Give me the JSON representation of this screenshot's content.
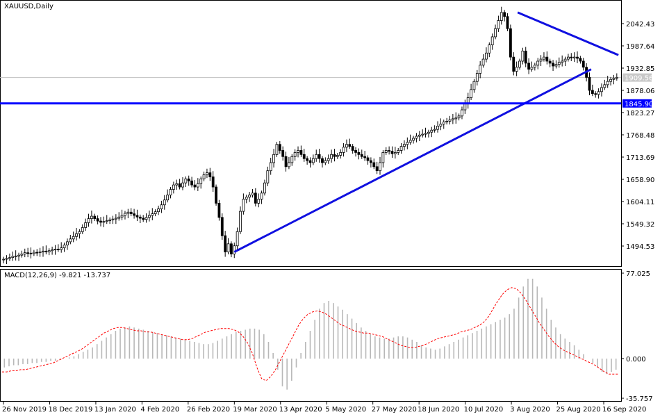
{
  "chart_data": [
    {
      "type": "candlestick",
      "title": "XAUUSD,Daily",
      "symbol": "XAUUSD",
      "timeframe": "Daily",
      "ylim": [
        1460,
        2090
      ],
      "y_ticks": [
        "2042.43",
        "1987.64",
        "1932.85",
        "1878.06",
        "1823.27",
        "1768.48",
        "1713.69",
        "1658.90",
        "1604.11",
        "1549.32",
        "1494.53"
      ],
      "current_price": "1909.56",
      "horizontal_line_value": "1845.90",
      "x_ticks": [
        "26 Nov 2019",
        "18 Dec 2019",
        "13 Jan 2020",
        "4 Feb 2020",
        "26 Feb 2020",
        "19 Mar 2020",
        "13 Apr 2020",
        "5 May 2020",
        "27 May 2020",
        "18 Jun 2020",
        "10 Jul 2020",
        "3 Aug 2020",
        "25 Aug 2020",
        "16 Sep 2020"
      ],
      "close_series": [
        1462,
        1464,
        1466,
        1469,
        1470,
        1472,
        1475,
        1478,
        1477,
        1476,
        1479,
        1478,
        1480,
        1482,
        1480,
        1483,
        1485,
        1487,
        1486,
        1490,
        1497,
        1505,
        1512,
        1518,
        1525,
        1530,
        1540,
        1552,
        1562,
        1568,
        1562,
        1556,
        1553,
        1555,
        1557,
        1559,
        1561,
        1563,
        1566,
        1570,
        1575,
        1578,
        1574,
        1570,
        1566,
        1563,
        1560,
        1565,
        1570,
        1574,
        1579,
        1586,
        1596,
        1608,
        1620,
        1634,
        1645,
        1648,
        1640,
        1650,
        1660,
        1655,
        1645,
        1640,
        1648,
        1660,
        1670,
        1675,
        1665,
        1640,
        1600,
        1565,
        1520,
        1480,
        1500,
        1475,
        1495,
        1530,
        1580,
        1610,
        1615,
        1620,
        1625,
        1600,
        1610,
        1625,
        1650,
        1680,
        1700,
        1720,
        1745,
        1730,
        1715,
        1690,
        1700,
        1715,
        1725,
        1730,
        1720,
        1710,
        1705,
        1700,
        1710,
        1720,
        1710,
        1700,
        1705,
        1710,
        1720,
        1715,
        1718,
        1725,
        1738,
        1745,
        1740,
        1730,
        1725,
        1720,
        1715,
        1712,
        1705,
        1700,
        1690,
        1680,
        1700,
        1725,
        1730,
        1728,
        1722,
        1725,
        1730,
        1740,
        1745,
        1750,
        1755,
        1760,
        1765,
        1768,
        1770,
        1772,
        1775,
        1780,
        1782,
        1790,
        1795,
        1800,
        1802,
        1805,
        1808,
        1810,
        1815,
        1830,
        1845,
        1860,
        1880,
        1900,
        1920,
        1940,
        1955,
        1970,
        1990,
        2010,
        2030,
        2050,
        2070,
        2060,
        2030,
        1960,
        1925,
        1935,
        1950,
        1975,
        1945,
        1930,
        1935,
        1940,
        1950,
        1955,
        1960,
        1950,
        1945,
        1938,
        1942,
        1947,
        1950,
        1955,
        1960,
        1958,
        1960,
        1957,
        1950,
        1935,
        1910,
        1878,
        1870,
        1868,
        1875,
        1885,
        1892,
        1900,
        1905,
        1908,
        1910
      ],
      "trendlines": [
        {
          "from": [
            "19 Mar 2020",
            1480
          ],
          "to": [
            "10 Sep 2020",
            1930
          ]
        },
        {
          "from": [
            "6 Aug 2020",
            2070
          ],
          "to": [
            "23 Sep 2020",
            1965
          ]
        }
      ]
    },
    {
      "type": "bar+line",
      "title": "MACD(12,26,9) -9.821 -13.737",
      "indicator": "MACD",
      "params": [
        12,
        26,
        9
      ],
      "macd_value": -9.821,
      "signal_value": -13.737,
      "ylim": [
        -35.757,
        77.025
      ],
      "y_ticks": [
        "77.025",
        "0.000",
        "-35.757"
      ],
      "macd_series": [
        -8,
        -7,
        -6,
        -6,
        -5,
        -5,
        -4,
        -4,
        -3,
        -3,
        -2,
        -2,
        -1,
        0,
        1,
        2,
        4,
        6,
        8,
        10,
        13,
        16,
        19,
        22,
        25,
        27,
        28,
        29,
        28,
        27,
        26,
        25,
        24,
        23,
        22,
        21,
        20,
        19,
        18,
        17,
        16,
        15,
        14,
        13,
        13,
        14,
        16,
        18,
        20,
        22,
        24,
        25,
        26,
        27,
        27,
        26,
        22,
        15,
        5,
        -10,
        -25,
        -28,
        -20,
        -8,
        5,
        15,
        25,
        35,
        45,
        50,
        52,
        50,
        47,
        44,
        40,
        36,
        32,
        28,
        25,
        22,
        20,
        19,
        18,
        18,
        19,
        20,
        20,
        19,
        17,
        15,
        12,
        10,
        9,
        8,
        9,
        11,
        13,
        15,
        17,
        19,
        21,
        23,
        25,
        27,
        29,
        31,
        33,
        35,
        37,
        40,
        45,
        55,
        65,
        72,
        72,
        65,
        55,
        45,
        35,
        28,
        22,
        18,
        15,
        12,
        8,
        4,
        0,
        -4,
        -8,
        -12,
        -14,
        -12,
        -10
      ],
      "signal_series": [
        -12,
        -12,
        -11,
        -11,
        -10,
        -10,
        -9,
        -8,
        -7,
        -6,
        -5,
        -4,
        -2,
        0,
        2,
        4,
        6,
        8,
        11,
        14,
        17,
        20,
        23,
        25,
        27,
        28,
        28,
        27,
        26,
        25,
        25,
        24,
        24,
        23,
        22,
        21,
        20,
        19,
        18,
        17,
        17,
        18,
        20,
        22,
        24,
        25,
        26,
        27,
        27,
        27,
        26,
        24,
        20,
        14,
        5,
        -8,
        -18,
        -20,
        -16,
        -10,
        -2,
        6,
        14,
        22,
        30,
        36,
        40,
        42,
        43,
        42,
        40,
        37,
        34,
        31,
        29,
        27,
        25,
        24,
        23,
        23,
        22,
        21,
        20,
        18,
        16,
        14,
        12,
        11,
        10,
        10,
        11,
        12,
        14,
        16,
        18,
        19,
        20,
        21,
        22,
        24,
        25,
        26,
        28,
        30,
        33,
        38,
        45,
        52,
        58,
        62,
        64,
        63,
        59,
        53,
        46,
        39,
        32,
        26,
        20,
        15,
        11,
        8,
        6,
        4,
        2,
        0,
        -2,
        -4,
        -6,
        -9,
        -12,
        -14,
        -14,
        -14
      ]
    }
  ]
}
